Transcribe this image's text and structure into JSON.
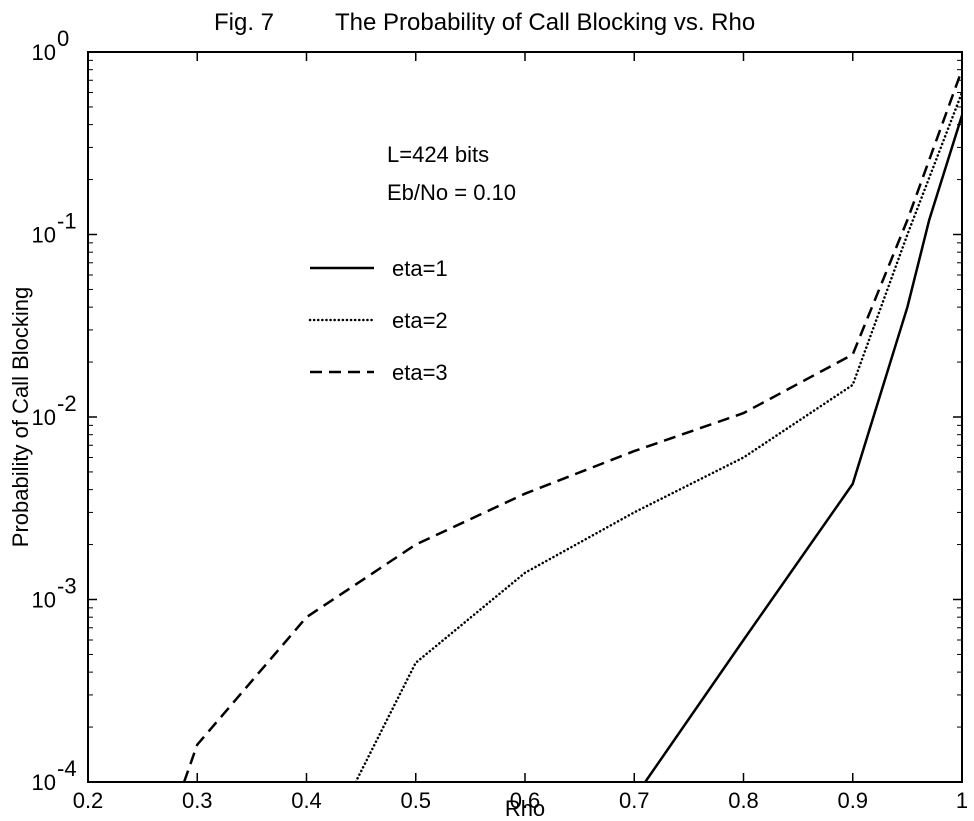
{
  "chart_data": {
    "type": "line",
    "title_prefix": "Fig. 7",
    "title": "The Probability of Call Blocking vs. Rho",
    "xlabel": "Rho",
    "ylabel": "Probability of Call Blocking",
    "xlim": [
      0.2,
      1.0
    ],
    "ylim": [
      0.0001,
      1
    ],
    "yscale": "log",
    "grid": false,
    "xticks": [
      0.2,
      0.3,
      0.4,
      0.5,
      0.6,
      0.7,
      0.8,
      0.9,
      1
    ],
    "xtick_labels": [
      "0.2",
      "0.3",
      "0.4",
      "0.5",
      "0.6",
      "0.7",
      "0.8",
      "0.9",
      "1"
    ],
    "yticks": [
      0.0001,
      0.001,
      0.01,
      0.1,
      1
    ],
    "ytick_base": "10",
    "ytick_exponents": [
      "-4",
      "-3",
      "-2",
      "-1",
      "0"
    ],
    "annotations": [
      "L=424 bits",
      "Eb/No = 0.10"
    ],
    "legend_position": "center-left",
    "series": [
      {
        "name": "eta=1",
        "line_style": "solid",
        "x": [
          0.71,
          0.8,
          0.9,
          0.95,
          0.97,
          1.0
        ],
        "y": [
          0.0001,
          0.0006,
          0.0043,
          0.04,
          0.12,
          0.45
        ]
      },
      {
        "name": "eta=2",
        "line_style": "dotted",
        "x": [
          0.445,
          0.5,
          0.6,
          0.7,
          0.8,
          0.9,
          0.95,
          1.0
        ],
        "y": [
          0.0001,
          0.00045,
          0.0014,
          0.003,
          0.006,
          0.015,
          0.1,
          0.6
        ]
      },
      {
        "name": "eta=3",
        "line_style": "dashed",
        "x": [
          0.288,
          0.3,
          0.4,
          0.5,
          0.6,
          0.7,
          0.8,
          0.9,
          0.95,
          1.0
        ],
        "y": [
          0.0001,
          0.00016,
          0.0008,
          0.002,
          0.0038,
          0.0065,
          0.0105,
          0.022,
          0.12,
          0.8
        ]
      }
    ]
  }
}
